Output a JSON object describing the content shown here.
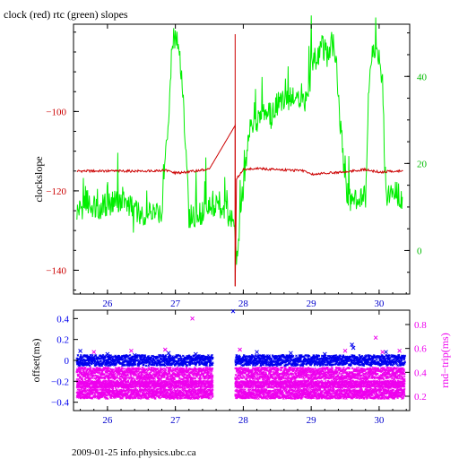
{
  "title": "clock (red) rtc (green) slopes",
  "footer": "2009-01-25 info.physics.ubc.ca",
  "colors": {
    "clock": "#cc0000",
    "rtc": "#00ee00",
    "offset": "#0000ee",
    "rndtrip": "#ee00ee",
    "axis": "#000000"
  },
  "chart_data": [
    {
      "type": "line",
      "title": "clock (red) rtc (green) slopes",
      "xlabel": "",
      "ylabel": "clockslope",
      "y2label": "",
      "xlim": [
        25.5,
        30.45
      ],
      "ylim": [
        -146,
        -78
      ],
      "y2lim": [
        -10,
        52
      ],
      "x_ticks": [
        26,
        27,
        28,
        29,
        30
      ],
      "x_tick_labels": [
        "26",
        "27",
        "28",
        "29",
        "30"
      ],
      "y_ticks": [
        -100,
        -120,
        -140
      ],
      "y_tick_labels": [
        "−100",
        "−120",
        "−140"
      ],
      "y2_ticks": [
        0,
        20,
        40
      ],
      "y2_tick_labels": [
        "0",
        "20",
        "40"
      ],
      "grid": false,
      "series": [
        {
          "name": "clock",
          "axis": "left",
          "x": [
            25.55,
            26.0,
            26.5,
            26.85,
            27.0,
            27.2,
            27.5,
            27.88,
            27.88,
            27.9,
            28.0,
            28.2,
            28.5,
            28.9,
            29.0,
            29.3,
            29.5,
            29.8,
            30.0,
            30.2,
            30.35
          ],
          "y": [
            -115,
            -115,
            -115,
            -114.8,
            -115.5,
            -115.2,
            -114.5,
            -103.5,
            -144,
            -117,
            -114.6,
            -114.4,
            -114.6,
            -115,
            -115.8,
            -115.4,
            -115.2,
            -114.6,
            -115.3,
            -115,
            -115
          ]
        },
        {
          "name": "rtc",
          "axis": "right",
          "x": [
            25.55,
            25.7,
            25.9,
            26.2,
            26.5,
            26.8,
            26.85,
            26.9,
            26.95,
            27.0,
            27.05,
            27.1,
            27.2,
            27.4,
            27.6,
            27.75,
            27.88,
            27.9,
            28.0,
            28.1,
            28.3,
            28.4,
            28.5,
            28.7,
            28.85,
            28.95,
            29.0,
            29.1,
            29.15,
            29.25,
            29.3,
            29.35,
            29.5,
            29.6,
            29.8,
            29.85,
            29.9,
            29.95,
            30.0,
            30.05,
            30.1,
            30.2,
            30.35
          ],
          "y": [
            9,
            11,
            10,
            12,
            8,
            9,
            20,
            30,
            47,
            48,
            47,
            40,
            8,
            9,
            10,
            9,
            5,
            -1,
            15,
            28,
            32,
            31,
            34,
            35,
            36,
            33,
            42,
            45,
            48,
            44,
            48,
            46,
            15,
            11,
            12,
            38,
            46,
            44,
            45,
            38,
            12,
            14,
            12
          ]
        }
      ]
    },
    {
      "type": "scatter",
      "xlabel": "",
      "ylabel": "offset(ms)",
      "y2label": "rnd−trip(ms)",
      "xlim": [
        25.5,
        30.45
      ],
      "ylim": [
        -0.48,
        0.48
      ],
      "y2lim": [
        0.08,
        0.92
      ],
      "x_ticks": [
        26,
        27,
        28,
        29,
        30
      ],
      "x_tick_labels": [
        "26",
        "27",
        "28",
        "29",
        "30"
      ],
      "y_ticks": [
        0.4,
        0.2,
        0,
        -0.2,
        -0.4
      ],
      "y_tick_labels": [
        "0.4",
        "0.2",
        "0",
        "−0.2",
        "−0.4"
      ],
      "y2_ticks": [
        0.8,
        0.6,
        0.4,
        0.2
      ],
      "y2_tick_labels": [
        "0.8",
        "0.6",
        "0.4",
        "0.2"
      ],
      "grid": false,
      "gap": [
        27.55,
        27.88
      ],
      "series": [
        {
          "name": "offset",
          "axis": "left",
          "band": [
            -0.05,
            0.05
          ],
          "x": [
            25.6,
            26.0,
            26.4,
            26.9,
            27.3,
            27.85,
            28.2,
            28.7,
            29.2,
            29.6,
            29.62,
            30.1
          ],
          "y": [
            0.09,
            0.06,
            0.05,
            0.07,
            0.06,
            0.47,
            0.08,
            0.07,
            0.06,
            0.15,
            0.12,
            0.08
          ]
        },
        {
          "name": "rndtrip",
          "axis": "right",
          "bands": [
            [
              0.18,
              0.26
            ],
            [
              0.27,
              0.33
            ],
            [
              0.34,
              0.44
            ]
          ],
          "x": [
            25.8,
            26.35,
            26.85,
            27.25,
            27.95,
            29.5,
            29.95,
            30.05,
            30.3
          ],
          "y": [
            0.57,
            0.58,
            0.59,
            0.85,
            0.59,
            0.58,
            0.69,
            0.57,
            0.58
          ]
        }
      ]
    }
  ]
}
